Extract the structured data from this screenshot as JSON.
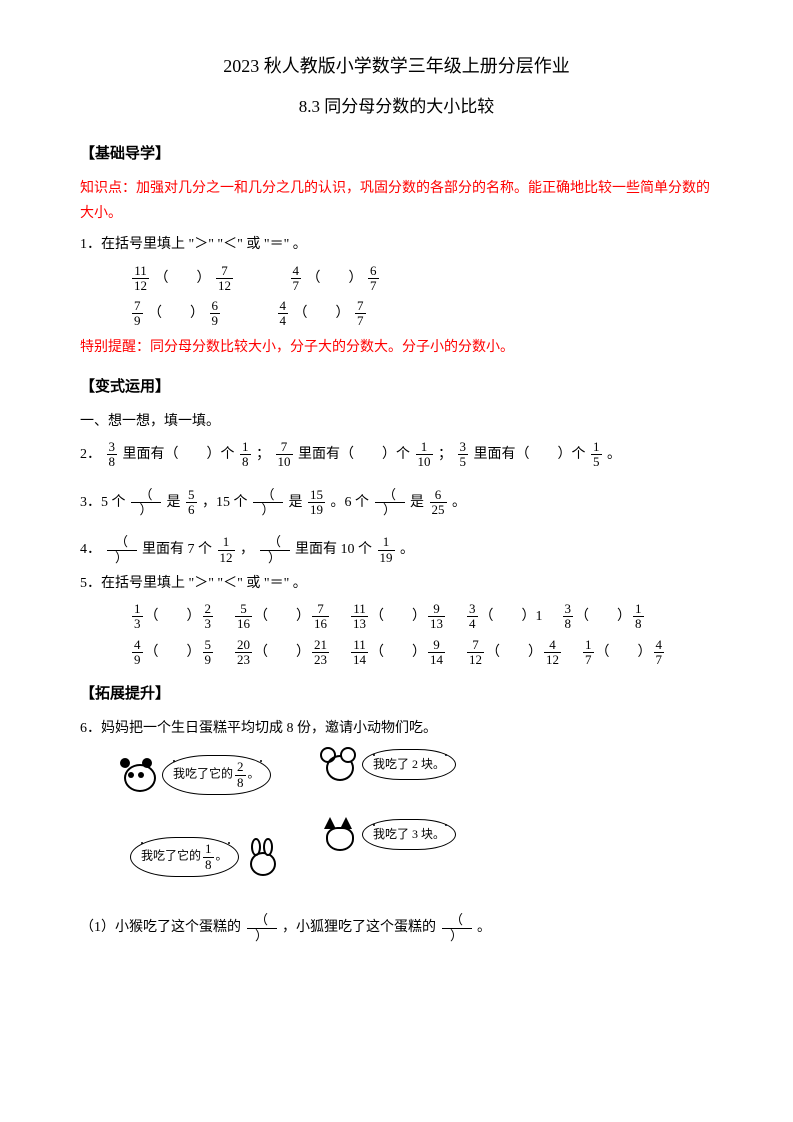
{
  "title1": "2023 秋人教版小学数学三年级上册分层作业",
  "title2": "8.3 同分母分数的大小比较",
  "sec_basic": "【基础导学】",
  "kp": "知识点：加强对几分之一和几分之几的认识，巩固分数的各部分的名称。能正确地比较一些简单分数的大小。",
  "q1_stem": "1．在括号里填上 \"＞\" \"＜\" 或 \"＝\" 。",
  "q1": {
    "a": {
      "n1": "11",
      "d1": "12",
      "n2": "7",
      "d2": "12"
    },
    "b": {
      "n1": "4",
      "d1": "7",
      "n2": "6",
      "d2": "7"
    },
    "c": {
      "n1": "7",
      "d1": "9",
      "n2": "6",
      "d2": "9"
    },
    "d": {
      "n1": "4",
      "d1": "4",
      "n2": "7",
      "d2": "7"
    }
  },
  "tip": "特别提醒：同分母分数比较大小，分子大的分数大。分子小的分数小。",
  "sec_var": "【变式运用】",
  "sub1": "一、想一想，填一填。",
  "q2_a": "2．",
  "q2_t1": "里面有（",
  "q2_t2": "）个",
  "q2_t3": "；",
  "q2_t4": "里面有（",
  "q2_t5": "）个",
  "q2_t6": "；",
  "q2_t7": "里面有（",
  "q2_t8": "）个",
  "q2_t9": "。",
  "q2": {
    "a": {
      "n": "3",
      "d": "8"
    },
    "au": {
      "n": "1",
      "d": "8"
    },
    "b": {
      "n": "7",
      "d": "10"
    },
    "bu": {
      "n": "1",
      "d": "10"
    },
    "c": {
      "n": "3",
      "d": "5"
    },
    "cu": {
      "n": "1",
      "d": "5"
    }
  },
  "q3_a": "3．5 个",
  "q3_b": "是",
  "q3_c": "，15 个",
  "q3_d": "是",
  "q3_e": "。6 个",
  "q3_f": "是",
  "q3_g": "。",
  "q3": {
    "r1": {
      "n": "5",
      "d": "6"
    },
    "r2": {
      "n": "15",
      "d": "19"
    },
    "r3": {
      "n": "6",
      "d": "25"
    }
  },
  "q4_a": "4．",
  "q4_b": "里面有 7 个",
  "q4_c": "，",
  "q4_d": "里面有 10 个",
  "q4_e": "。",
  "q4": {
    "u1": {
      "n": "1",
      "d": "12"
    },
    "u2": {
      "n": "1",
      "d": "19"
    }
  },
  "q5_stem": "5．在括号里填上 \"＞\" \"＜\" 或 \"＝\" 。",
  "q5": {
    "r1": [
      {
        "n1": "1",
        "d1": "3",
        "n2": "2",
        "d2": "3"
      },
      {
        "n1": "5",
        "d1": "16",
        "n2": "7",
        "d2": "16"
      },
      {
        "n1": "11",
        "d1": "13",
        "n2": "9",
        "d2": "13"
      },
      {
        "n1": "3",
        "d1": "4",
        "n2": "",
        "d2": "",
        "rhs": "1"
      },
      {
        "n1": "3",
        "d1": "8",
        "n2": "1",
        "d2": "8"
      }
    ],
    "r2": [
      {
        "n1": "4",
        "d1": "9",
        "n2": "5",
        "d2": "9"
      },
      {
        "n1": "20",
        "d1": "23",
        "n2": "21",
        "d2": "23"
      },
      {
        "n1": "11",
        "d1": "14",
        "n2": "9",
        "d2": "14"
      },
      {
        "n1": "7",
        "d1": "12",
        "n2": "4",
        "d2": "12"
      },
      {
        "n1": "1",
        "d1": "7",
        "n2": "4",
        "d2": "7"
      }
    ]
  },
  "sec_ext": "【拓展提升】",
  "q6_stem": "6．妈妈把一个生日蛋糕平均切成 8 份，邀请小动物们吃。",
  "bub": {
    "panda_pre": "我吃了它的",
    "panda_n": "2",
    "panda_d": "8",
    "panda_post": "。",
    "mouse": "我吃了 2 块。",
    "rabbit_pre": "我吃了它的",
    "rabbit_n": "1",
    "rabbit_d": "8",
    "rabbit_post": "。",
    "fox": "我吃了 3 块。"
  },
  "q6_1a": "（1）小猴吃了这个蛋糕的",
  "q6_1b": "，小狐狸吃了这个蛋糕的",
  "q6_1c": "。",
  "paren_l": "（",
  "paren_r": "）"
}
